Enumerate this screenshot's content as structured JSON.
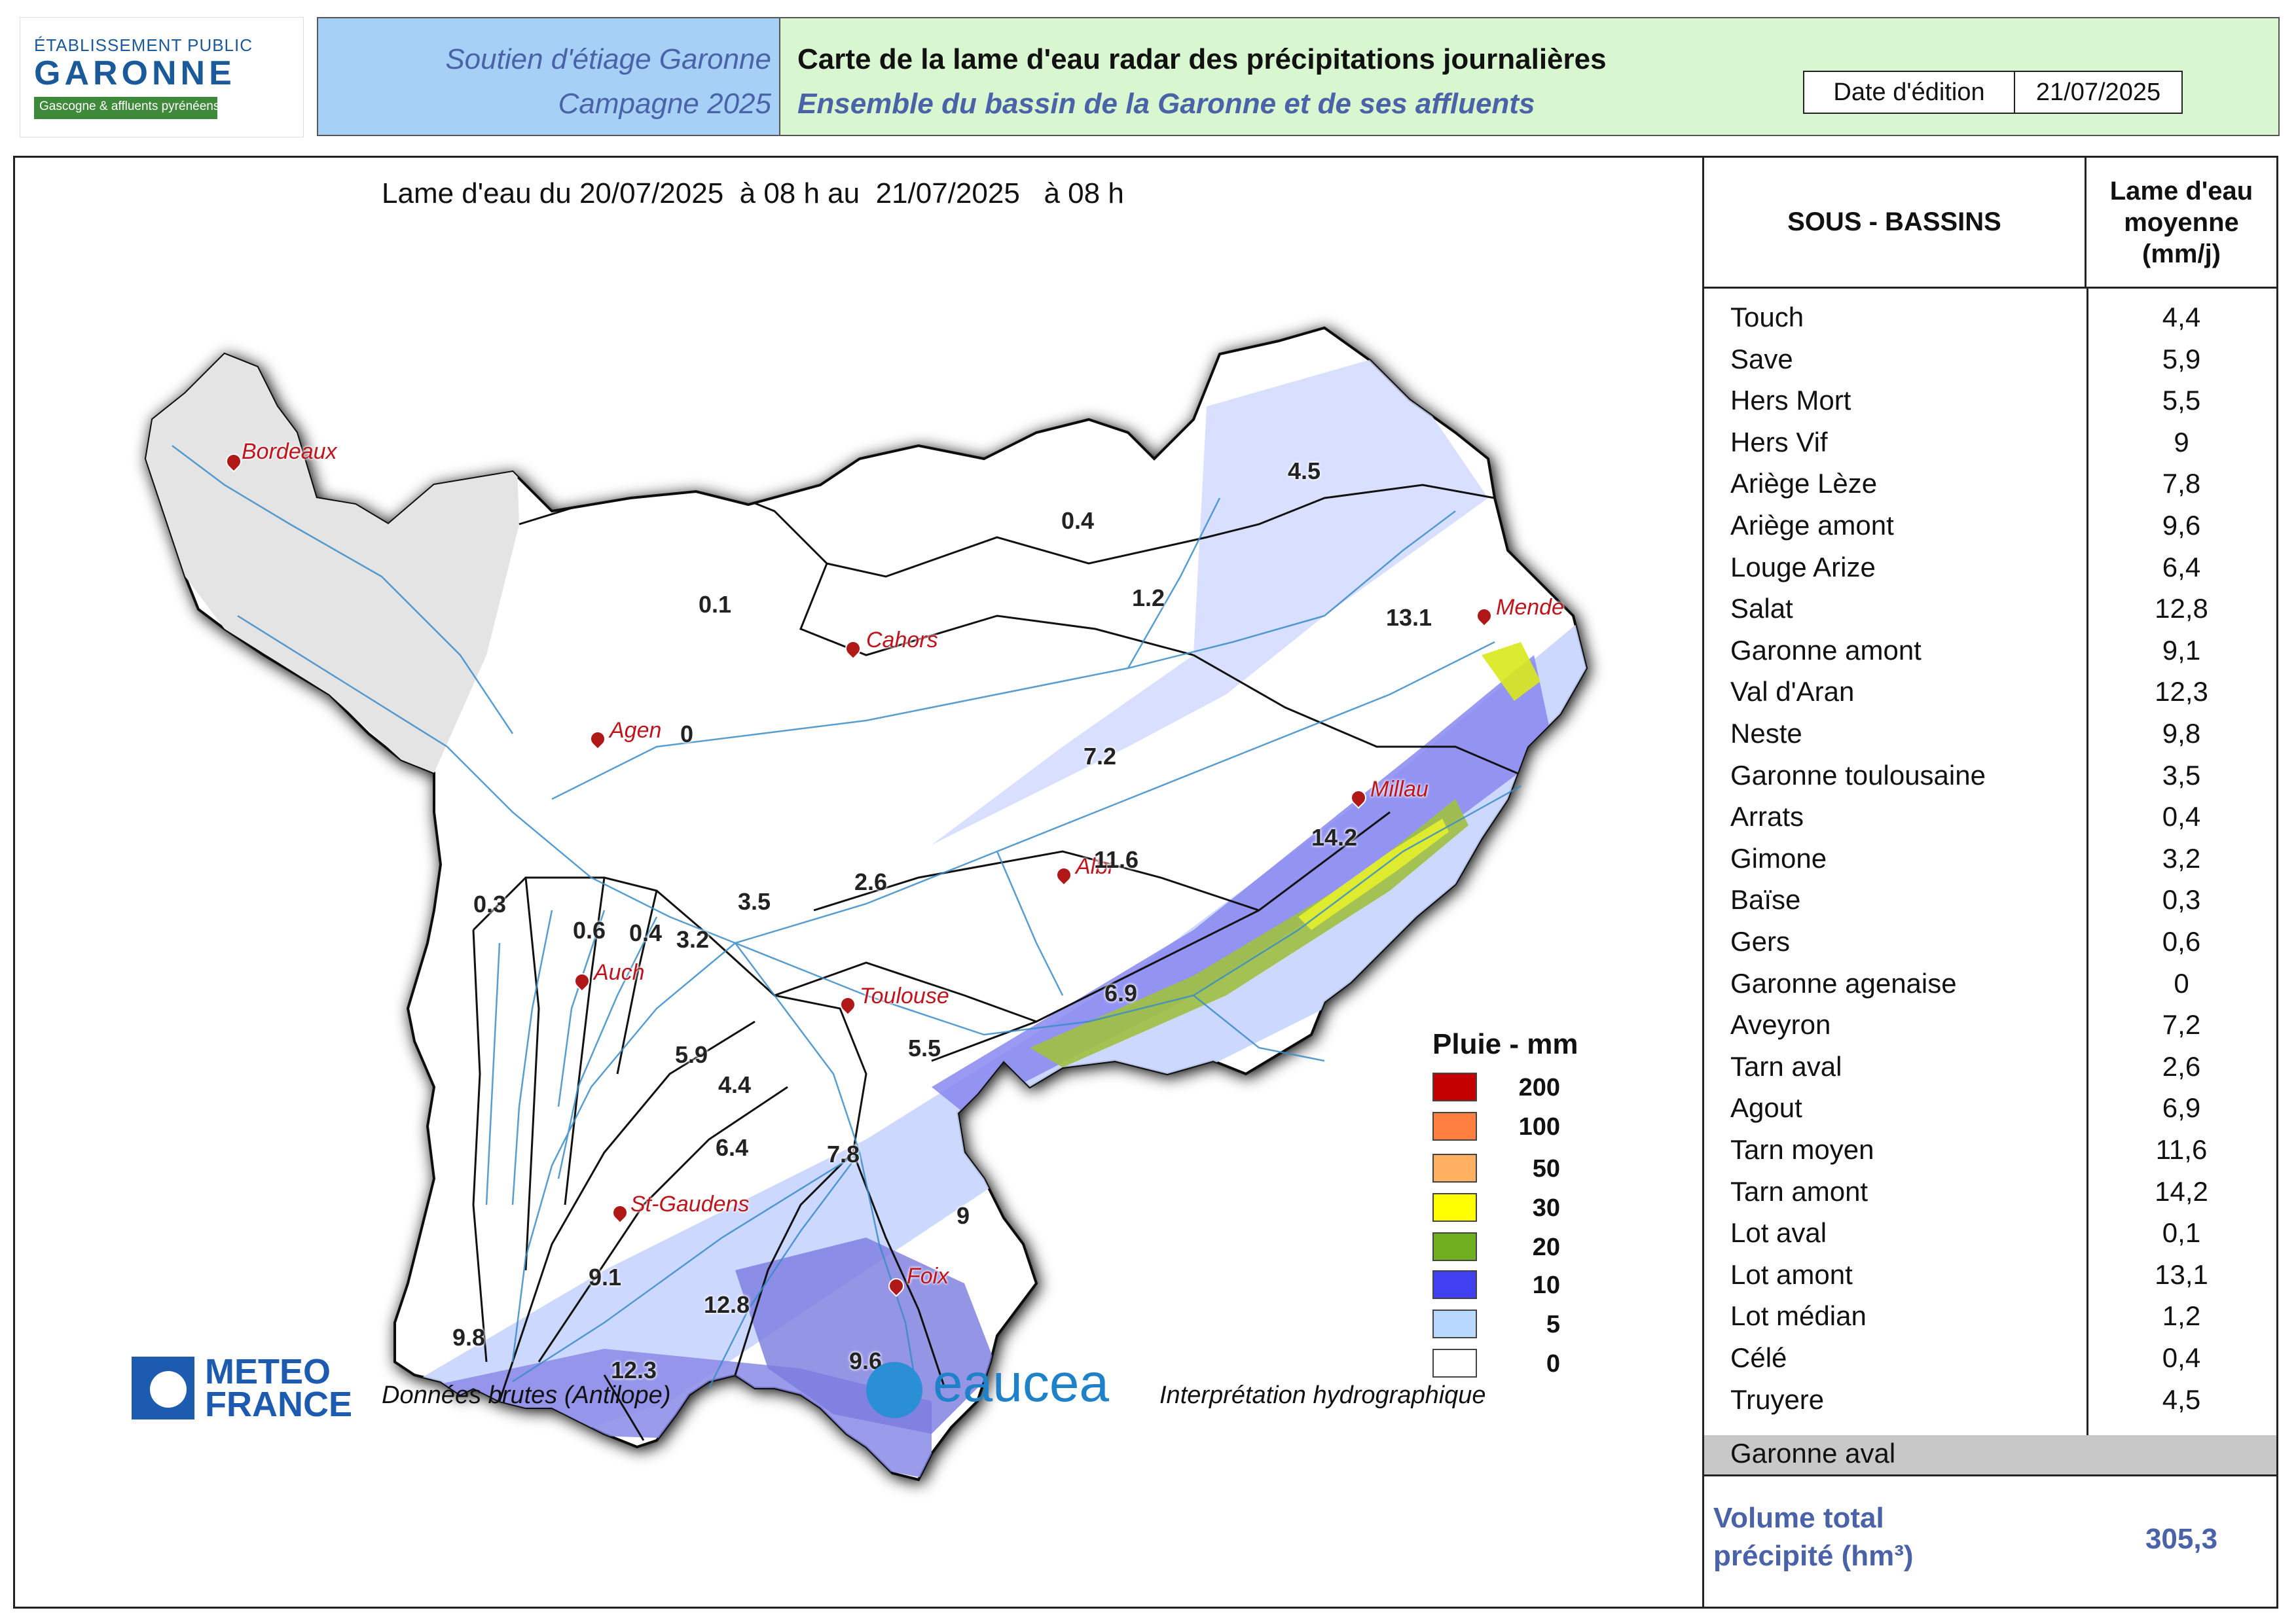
{
  "logo": {
    "small": "ÉTABLISSEMENT PUBLIC",
    "big": "GARONNE",
    "sub": "Gascogne & affluents pyrénéens"
  },
  "header": {
    "left_line1": "Soutien d'étiage Garonne",
    "left_line2": "Campagne 2025",
    "title": "Carte de la lame d'eau radar des précipitations journalières",
    "subtitle": "Ensemble du bassin de la Garonne et de ses affluents",
    "date_label": "Date d'édition",
    "date_value": "21/07/2025"
  },
  "map": {
    "period": "Lame d'eau du 20/07/2025  à 08 h au  21/07/2025   à 08 h",
    "cities": [
      "Bordeaux",
      "Cahors",
      "Mende",
      "Agen",
      "Millau",
      "Albi",
      "Auch",
      "Toulouse",
      "St-Gaudens",
      "Foix"
    ],
    "values": [
      "4.5",
      "0.4",
      "0.1",
      "1.2",
      "13.1",
      "0",
      "7.2",
      "11.6",
      "14.2",
      "2.6",
      "3.5",
      "0.3",
      "0.6",
      "0.4",
      "3.2",
      "6.9",
      "5.5",
      "5.9",
      "4.4",
      "6.4",
      "7.8",
      "9",
      "9.1",
      "12.8",
      "9.8",
      "12.3",
      "9.6"
    ]
  },
  "legend": {
    "title": "Pluie - mm",
    "items": [
      {
        "label": "200",
        "color": "#c40000"
      },
      {
        "label": "100",
        "color": "#ff7f40"
      },
      {
        "label": "50",
        "color": "#ffb060"
      },
      {
        "label": "30",
        "color": "#ffff00"
      },
      {
        "label": "20",
        "color": "#70b020"
      },
      {
        "label": "10",
        "color": "#4040f0"
      },
      {
        "label": "5",
        "color": "#b8d8ff"
      },
      {
        "label": "0",
        "color": "#ffffff"
      }
    ]
  },
  "footer": {
    "mf_line1": "METEO",
    "mf_line2": "FRANCE",
    "mf_caption": "Données brutes (Antilope)",
    "eaucea": "eaucea",
    "eaucea_caption": "Interprétation hydrographique"
  },
  "table": {
    "header_sous": "SOUS - BASSINS",
    "header_lame": "Lame d'eau moyenne (mm/j)",
    "rows": [
      {
        "name": "Touch",
        "value": "4,4"
      },
      {
        "name": "Save",
        "value": "5,9"
      },
      {
        "name": "Hers Mort",
        "value": "5,5"
      },
      {
        "name": "Hers Vif",
        "value": "9"
      },
      {
        "name": "Ariège Lèze",
        "value": "7,8"
      },
      {
        "name": "Ariège amont",
        "value": "9,6"
      },
      {
        "name": "Louge Arize",
        "value": "6,4"
      },
      {
        "name": "Salat",
        "value": "12,8"
      },
      {
        "name": "Garonne amont",
        "value": "9,1"
      },
      {
        "name": "Val d'Aran",
        "value": "12,3"
      },
      {
        "name": "Neste",
        "value": "9,8"
      },
      {
        "name": "Garonne toulousaine",
        "value": "3,5"
      },
      {
        "name": "Arrats",
        "value": "0,4"
      },
      {
        "name": "Gimone",
        "value": "3,2"
      },
      {
        "name": "Baïse",
        "value": "0,3"
      },
      {
        "name": "Gers",
        "value": "0,6"
      },
      {
        "name": "Garonne agenaise",
        "value": "0"
      },
      {
        "name": "Aveyron",
        "value": "7,2"
      },
      {
        "name": "Tarn aval",
        "value": "2,6"
      },
      {
        "name": "Agout",
        "value": "6,9"
      },
      {
        "name": "Tarn moyen",
        "value": "11,6"
      },
      {
        "name": "Tarn amont",
        "value": "14,2"
      },
      {
        "name": "Lot aval",
        "value": "0,1"
      },
      {
        "name": "Lot amont",
        "value": "13,1"
      },
      {
        "name": "Lot médian",
        "value": "1,2"
      },
      {
        "name": "Célé",
        "value": "0,4"
      },
      {
        "name": "Truyere",
        "value": "4,5"
      }
    ],
    "aval_name": "Garonne aval",
    "volume_label_1": "Volume total",
    "volume_label_2": "précipité (hm³)",
    "volume_value": "305,3"
  }
}
